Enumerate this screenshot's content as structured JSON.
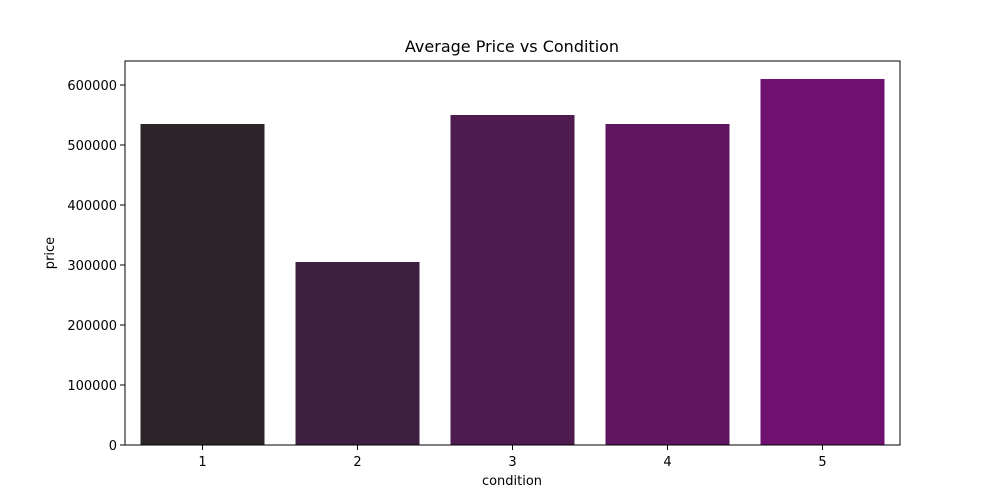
{
  "chart_data": {
    "type": "bar",
    "title": "Average Price vs Condition",
    "xlabel": "condition",
    "ylabel": "price",
    "categories": [
      "1",
      "2",
      "3",
      "4",
      "5"
    ],
    "values": [
      535000,
      305000,
      550000,
      535000,
      610000
    ],
    "colors": [
      "#2b2429",
      "#3d1f3f",
      "#4e1b4f",
      "#5f165f",
      "#701070"
    ],
    "ylim": [
      0,
      640000
    ],
    "yticks": [
      0,
      100000,
      200000,
      300000,
      400000,
      500000,
      600000
    ],
    "ytick_labels": [
      "0",
      "100000",
      "200000",
      "300000",
      "400000",
      "500000",
      "600000"
    ],
    "grid": false,
    "legend": "none"
  }
}
